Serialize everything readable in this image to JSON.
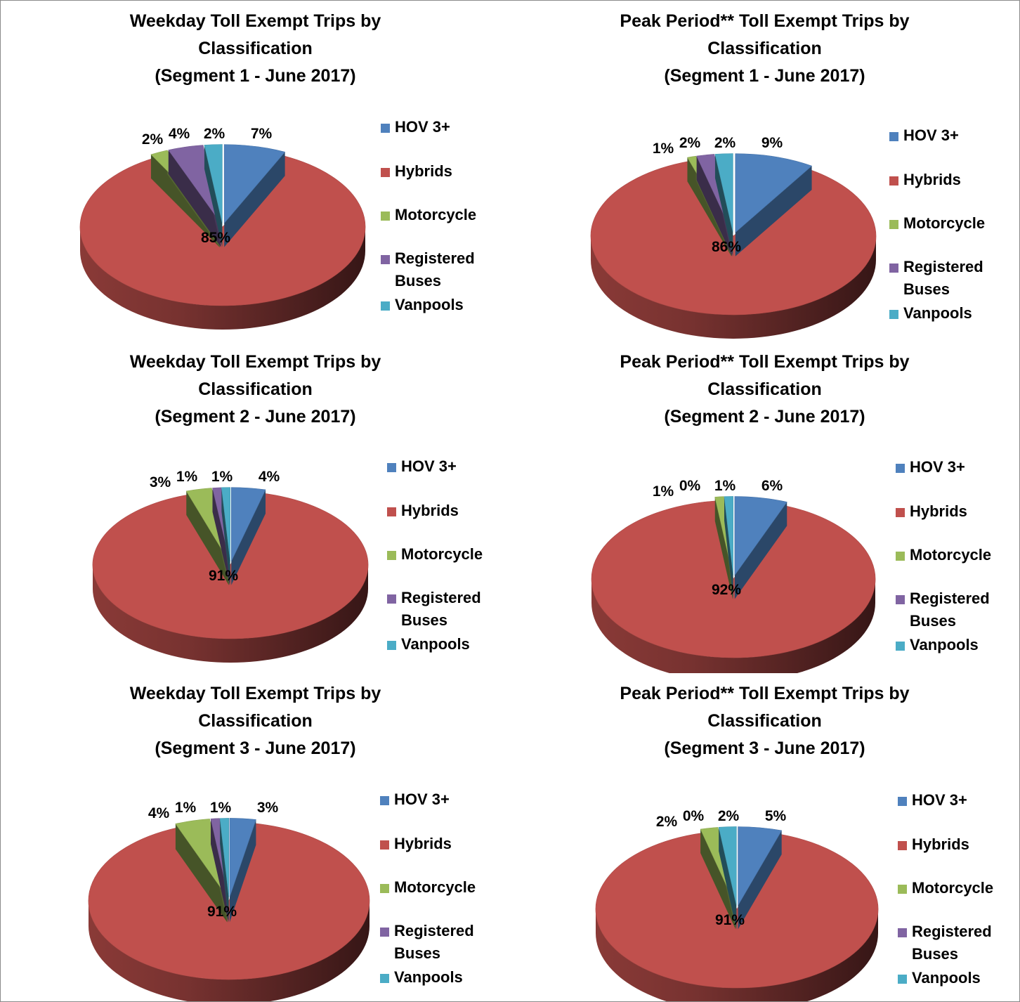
{
  "colors": {
    "HOV 3+": "#4f81bd",
    "Hybrids": "#c0504d",
    "Motorcycle": "#9bbb59",
    "Registered Buses": "#8064a2",
    "Vanpools": "#4bacc6"
  },
  "chart_data": [
    {
      "type": "pie",
      "title": [
        "Weekday Toll Exempt Trips by",
        "Classification",
        "(Segment 1 - June 2017)"
      ],
      "categories": [
        "HOV 3+",
        "Hybrids",
        "Motorcycle",
        "Registered Buses",
        "Vanpools"
      ],
      "values": [
        7,
        85,
        2,
        4,
        2
      ],
      "labels": [
        "7%",
        "85%",
        "2%",
        "4%",
        "2%"
      ],
      "legend": "right"
    },
    {
      "type": "pie",
      "title": [
        "Peak Period** Toll Exempt Trips by",
        "Classification",
        "(Segment 1 - June 2017)"
      ],
      "categories": [
        "HOV 3+",
        "Hybrids",
        "Motorcycle",
        "Registered Buses",
        "Vanpools"
      ],
      "values": [
        9,
        86,
        1,
        2,
        2
      ],
      "labels": [
        "9%",
        "86%",
        "1%",
        "2%",
        "2%"
      ],
      "legend": "right"
    },
    {
      "type": "pie",
      "title": [
        "Weekday Toll Exempt Trips by",
        "Classification",
        "(Segment 2 - June 2017)"
      ],
      "categories": [
        "HOV 3+",
        "Hybrids",
        "Motorcycle",
        "Registered Buses",
        "Vanpools"
      ],
      "values": [
        4,
        91,
        3,
        1,
        1
      ],
      "labels": [
        "4%",
        "91%",
        "3%",
        "1%",
        "1%"
      ],
      "legend": "right"
    },
    {
      "type": "pie",
      "title": [
        "Peak Period** Toll Exempt Trips by",
        "Classification",
        "(Segment 2 - June 2017)"
      ],
      "categories": [
        "HOV 3+",
        "Hybrids",
        "Motorcycle",
        "Registered Buses",
        "Vanpools"
      ],
      "values": [
        6,
        92,
        1,
        0,
        1
      ],
      "labels": [
        "6%",
        "92%",
        "1%",
        "0%",
        "1%"
      ],
      "legend": "right"
    },
    {
      "type": "pie",
      "title": [
        "Weekday Toll Exempt Trips by",
        "Classification",
        "(Segment 3 - June 2017)"
      ],
      "categories": [
        "HOV 3+",
        "Hybrids",
        "Motorcycle",
        "Registered Buses",
        "Vanpools"
      ],
      "values": [
        3,
        91,
        4,
        1,
        1
      ],
      "labels": [
        "3%",
        "91%",
        "4%",
        "1%",
        "1%"
      ],
      "legend": "right"
    },
    {
      "type": "pie",
      "title": [
        "Peak Period** Toll Exempt Trips by",
        "Classification",
        "(Segment 3 - June 2017)"
      ],
      "categories": [
        "HOV 3+",
        "Hybrids",
        "Motorcycle",
        "Registered Buses",
        "Vanpools"
      ],
      "values": [
        5,
        91,
        2,
        0,
        2
      ],
      "labels": [
        "5%",
        "91%",
        "2%",
        "0%",
        "2%"
      ],
      "legend": "right"
    }
  ]
}
